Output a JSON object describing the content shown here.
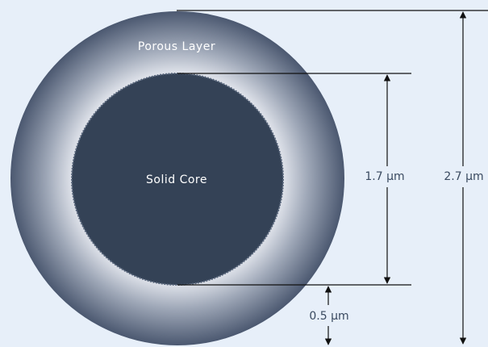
{
  "labels": {
    "porous_layer": "Porous Layer",
    "solid_core": "Solid Core"
  },
  "dimensions": {
    "outer_diameter": "2.7 μm",
    "core_diameter": "1.7 μm",
    "shell_thickness": "0.5 μm"
  }
}
